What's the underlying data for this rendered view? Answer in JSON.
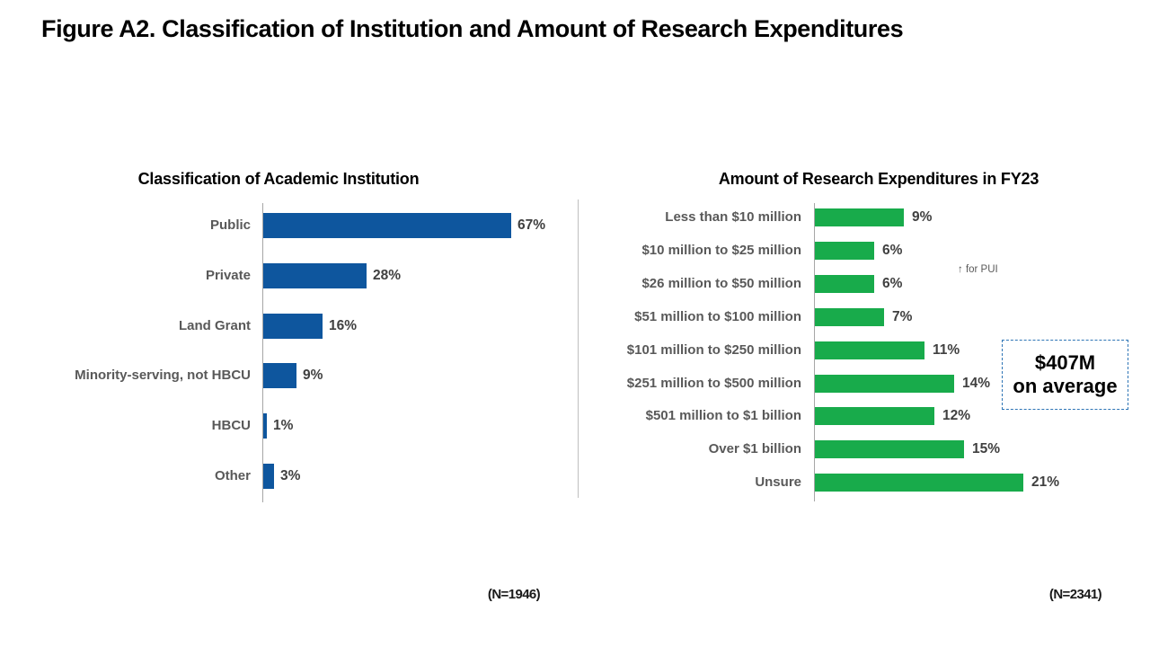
{
  "figure_title": "Figure A2. Classification of Institution and Amount of Research Expenditures",
  "chart_data": [
    {
      "type": "bar",
      "orientation": "horizontal",
      "title": "Classification of Academic Institution",
      "categories": [
        "Public",
        "Private",
        "Land Grant",
        "Minority-serving, not HBCU",
        "HBCU",
        "Other"
      ],
      "values": [
        67,
        28,
        16,
        9,
        1,
        3
      ],
      "labels": [
        "67%",
        "28%",
        "16%",
        "9%",
        "1%",
        "3%"
      ],
      "unit": "%",
      "xlim": [
        0,
        85
      ],
      "grid": false,
      "legend": "none",
      "bar_color": "#0e569e",
      "sample_size": "(N=1946)"
    },
    {
      "type": "bar",
      "orientation": "horizontal",
      "title": "Amount of Research Expenditures in FY23",
      "categories": [
        "Less than $10 million",
        "$10 million to $25 million",
        "$26 million to $50 million",
        "$51 million to $100 million",
        "$101 million to $250 million",
        "$251 million to $500 million",
        "$501 million to $1 billion",
        "Over $1 billion",
        "Unsure"
      ],
      "values": [
        9,
        6,
        6,
        7,
        11,
        14,
        12,
        15,
        21
      ],
      "labels": [
        "9%",
        "6%",
        "6%",
        "7%",
        "11%",
        "14%",
        "12%",
        "15%",
        "21%"
      ],
      "unit": "%",
      "xlim": [
        0,
        34
      ],
      "grid": false,
      "legend": "none",
      "bar_color": "#18ab4b",
      "sample_size": "(N=2341)",
      "annotation": "↑ for PUI",
      "callout": {
        "line1": "$407M",
        "line2": "on average"
      }
    }
  ],
  "colors": {
    "left_bar": "#0e569e",
    "right_bar": "#18ab4b",
    "category_label": "#595959",
    "value_label": "#404040",
    "axis_line": "#a6a6a6",
    "callout_border": "#2e75b6"
  }
}
